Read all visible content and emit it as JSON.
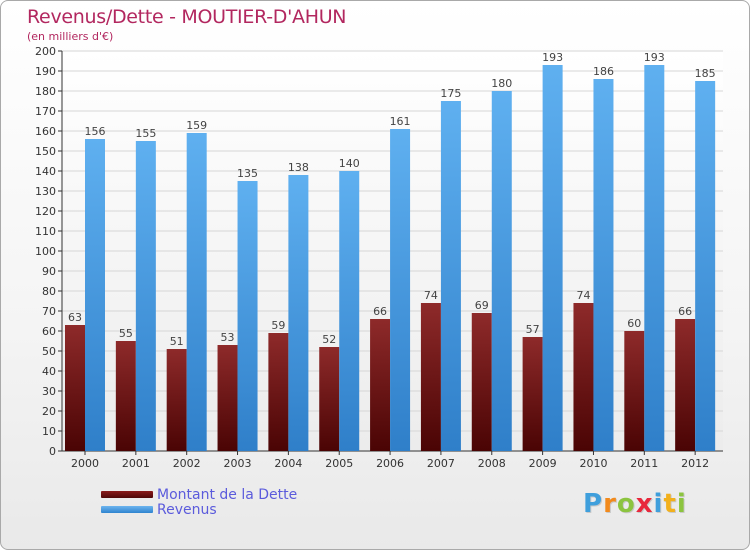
{
  "header": {
    "title": "Revenus/Dette - MOUTIER-D'AHUN",
    "subtitle": "(en milliers d'€)"
  },
  "colors": {
    "title": "#b2275f",
    "dette": "#7a1414",
    "revenus": "#4c9fe6",
    "legend_text": "#5b5bdc"
  },
  "chart_data": {
    "type": "bar",
    "title": "Revenus/Dette - MOUTIER-D'AHUN",
    "ylabel": "(en milliers d'€)",
    "xlabel": "",
    "ylim": [
      0,
      200
    ],
    "ytick_step": 10,
    "grid": true,
    "legend_position": "bottom-left",
    "categories": [
      "2000",
      "2001",
      "2002",
      "2003",
      "2004",
      "2005",
      "2006",
      "2007",
      "2008",
      "2009",
      "2010",
      "2011",
      "2012"
    ],
    "series": [
      {
        "name": "Montant de la Dette",
        "values": [
          63,
          55,
          51,
          53,
          59,
          52,
          66,
          74,
          69,
          57,
          74,
          60,
          66
        ]
      },
      {
        "name": "Revenus",
        "values": [
          156,
          155,
          159,
          135,
          138,
          140,
          161,
          175,
          180,
          193,
          186,
          193,
          185
        ]
      }
    ]
  },
  "legend": {
    "items": [
      "Montant de la Dette",
      "Revenus"
    ]
  },
  "logo": {
    "letters": [
      "P",
      "r",
      "o",
      "x",
      "i",
      "t",
      "i"
    ],
    "letter_colors": [
      "#3f9fdc",
      "#f28a1c",
      "#8cc43f",
      "#e8283c",
      "#3f9fdc",
      "#f2b01c",
      "#8cc43f"
    ]
  }
}
